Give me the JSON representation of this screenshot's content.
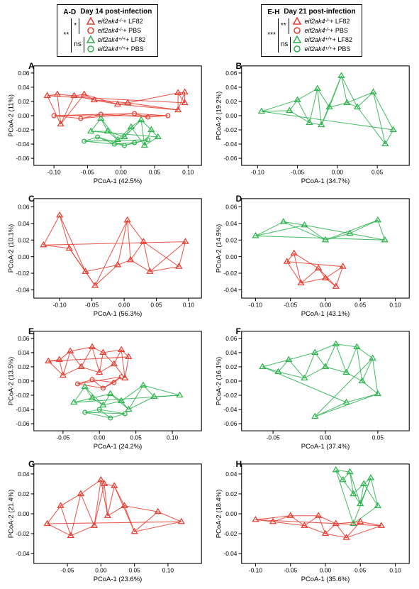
{
  "legends": [
    {
      "id": "legend-left",
      "panelRange": "A-D",
      "title": "Day 14 post-infection",
      "outerSig": "**",
      "innerSigTop": "*",
      "innerSigBottom": "ns",
      "items": [
        {
          "shape": "triangle",
          "color": "#e63b2e",
          "gene": "eif2ak4",
          "genotype": "-/-",
          "treat": " + LF82"
        },
        {
          "shape": "circle",
          "color": "#e63b2e",
          "gene": "eif2ak4",
          "genotype": "-/-",
          "treat": " + PBS"
        },
        {
          "shape": "triangle",
          "color": "#2bb24c",
          "gene": "eif2ak4",
          "genotype": "+/+",
          "treat": " + LF82"
        },
        {
          "shape": "circle",
          "color": "#2bb24c",
          "gene": "eif2ak4",
          "genotype": "+/+",
          "treat": " + PBS"
        }
      ]
    },
    {
      "id": "legend-right",
      "panelRange": "E-H",
      "title": "Day 21 post-infection",
      "outerSig": "***",
      "innerSigTop": "**",
      "innerSigBottom": "ns",
      "items": [
        {
          "shape": "triangle",
          "color": "#e63b2e",
          "gene": "eif2ak4",
          "genotype": "-/-",
          "treat": " + LF82"
        },
        {
          "shape": "circle",
          "color": "#e63b2e",
          "gene": "eif2ak4",
          "genotype": "-/-",
          "treat": " + PBS"
        },
        {
          "shape": "triangle",
          "color": "#2bb24c",
          "gene": "eif2ak4",
          "genotype": "+/+",
          "treat": " + LF82"
        },
        {
          "shape": "circle",
          "color": "#2bb24c",
          "gene": "eif2ak4",
          "genotype": "+/+",
          "treat": " + PBS"
        }
      ]
    }
  ],
  "chartStyle": {
    "background": "#ffffff",
    "axisColor": "#000000",
    "tickFont": 8,
    "labelFont": 9,
    "panelLabelFont": 12,
    "markerSize": 5,
    "lineWidth": 1.2
  },
  "panels": [
    {
      "label": "A",
      "xLabel": "PCoA-1 (42.5%)",
      "yLabel": "PCoA-2 (11%)",
      "xlim": [
        -0.13,
        0.12
      ],
      "ylim": [
        -0.07,
        0.07
      ],
      "xticks": [
        -0.1,
        -0.05,
        0.0,
        0.05,
        0.1
      ],
      "yticks": [
        -0.06,
        -0.04,
        -0.02,
        0.0,
        0.02,
        0.04,
        0.06
      ],
      "groups": [
        {
          "color": "#e63b2e",
          "marker": "triangle",
          "points": [
            [
              -0.11,
              0.028
            ],
            [
              -0.095,
              0.03
            ],
            [
              -0.09,
              -0.012
            ],
            [
              -0.07,
              0.028
            ],
            [
              -0.055,
              0.03
            ],
            [
              -0.04,
              0.022
            ],
            [
              -0.005,
              0.016
            ],
            [
              0.01,
              0.018
            ],
            [
              0.085,
              0.008
            ],
            [
              0.085,
              0.032
            ],
            [
              0.095,
              0.033
            ],
            [
              0.095,
              0.018
            ]
          ]
        },
        {
          "color": "#e63b2e",
          "marker": "circle",
          "points": [
            [
              -0.1,
              0.0
            ],
            [
              -0.06,
              -0.004
            ],
            [
              -0.03,
              0.002
            ],
            [
              0.02,
              0.003
            ],
            [
              0.04,
              -0.002
            ],
            [
              0.07,
              0.0
            ]
          ]
        },
        {
          "color": "#2bb24c",
          "marker": "triangle",
          "points": [
            [
              -0.045,
              -0.022
            ],
            [
              -0.03,
              -0.004
            ],
            [
              -0.02,
              -0.022
            ],
            [
              -0.005,
              -0.034
            ],
            [
              0.005,
              -0.03
            ],
            [
              0.015,
              -0.016
            ],
            [
              0.03,
              -0.006
            ],
            [
              0.035,
              -0.042
            ],
            [
              0.045,
              -0.02
            ],
            [
              0.055,
              -0.03
            ]
          ]
        },
        {
          "color": "#2bb24c",
          "marker": "circle",
          "points": [
            [
              -0.055,
              -0.036
            ],
            [
              -0.035,
              -0.03
            ],
            [
              -0.01,
              -0.04
            ],
            [
              0.005,
              -0.042
            ],
            [
              0.02,
              -0.038
            ],
            [
              0.04,
              -0.034
            ]
          ]
        }
      ]
    },
    {
      "label": "B",
      "xLabel": "PCoA-1 (34.7%)",
      "yLabel": "PCoA-2 (19.2%)",
      "xlim": [
        -0.12,
        0.09
      ],
      "ylim": [
        -0.07,
        0.07
      ],
      "xticks": [
        -0.1,
        -0.05,
        0.0,
        0.05
      ],
      "yticks": [
        -0.06,
        -0.04,
        -0.02,
        0.0,
        0.02,
        0.04,
        0.06
      ],
      "groups": [
        {
          "color": "#2bb24c",
          "marker": "triangle",
          "points": [
            [
              -0.095,
              0.006
            ],
            [
              -0.06,
              0.007
            ],
            [
              -0.05,
              0.022
            ],
            [
              -0.035,
              -0.01
            ],
            [
              -0.025,
              0.038
            ],
            [
              -0.02,
              -0.013
            ],
            [
              -0.01,
              0.012
            ],
            [
              0.005,
              0.056
            ],
            [
              0.012,
              0.018
            ],
            [
              0.025,
              0.012
            ],
            [
              0.045,
              0.033
            ],
            [
              0.06,
              -0.04
            ],
            [
              0.07,
              -0.02
            ]
          ]
        }
      ]
    },
    {
      "label": "C",
      "xLabel": "PCoA-1 (56.3%)",
      "yLabel": "PCoA-2 (10.1%)",
      "xlim": [
        -0.14,
        0.12
      ],
      "ylim": [
        -0.05,
        0.07
      ],
      "xticks": [
        -0.1,
        -0.05,
        0.0,
        0.05,
        0.1
      ],
      "yticks": [
        -0.04,
        -0.02,
        0.0,
        0.02,
        0.04,
        0.06
      ],
      "groups": [
        {
          "color": "#e63b2e",
          "marker": "triangle",
          "points": [
            [
              -0.125,
              0.014
            ],
            [
              -0.1,
              0.05
            ],
            [
              -0.085,
              0.01
            ],
            [
              -0.06,
              -0.018
            ],
            [
              -0.045,
              -0.035
            ],
            [
              -0.01,
              -0.01
            ],
            [
              0.005,
              0.044
            ],
            [
              0.01,
              -0.004
            ],
            [
              0.03,
              0.018
            ],
            [
              0.04,
              -0.018
            ],
            [
              0.085,
              -0.012
            ],
            [
              0.095,
              0.018
            ]
          ]
        }
      ]
    },
    {
      "label": "D",
      "xLabel": "PCoA-1 (43.1%)",
      "yLabel": "PCoA-2 (14.9%)",
      "xlim": [
        -0.12,
        0.12
      ],
      "ylim": [
        -0.05,
        0.07
      ],
      "xticks": [
        -0.1,
        -0.05,
        0.0,
        0.05,
        0.1
      ],
      "yticks": [
        -0.04,
        -0.02,
        0.0,
        0.02,
        0.04,
        0.06
      ],
      "groups": [
        {
          "color": "#2bb24c",
          "marker": "triangle",
          "points": [
            [
              -0.1,
              0.025
            ],
            [
              -0.06,
              0.042
            ],
            [
              -0.03,
              0.038
            ],
            [
              0.0,
              0.02
            ],
            [
              0.035,
              0.028
            ],
            [
              0.075,
              0.044
            ],
            [
              0.085,
              0.02
            ]
          ]
        },
        {
          "color": "#e63b2e",
          "marker": "triangle",
          "points": [
            [
              -0.055,
              -0.006
            ],
            [
              -0.045,
              0.004
            ],
            [
              -0.035,
              -0.032
            ],
            [
              -0.01,
              -0.014
            ],
            [
              0.0,
              -0.026
            ],
            [
              0.015,
              -0.036
            ],
            [
              0.025,
              -0.012
            ]
          ]
        }
      ]
    },
    {
      "label": "E",
      "xLabel": "PCoA-1 (24.2%)",
      "yLabel": "PCoA-2 (13.5%)",
      "xlim": [
        -0.09,
        0.14
      ],
      "ylim": [
        -0.07,
        0.07
      ],
      "xticks": [
        -0.05,
        0.0,
        0.05,
        0.1
      ],
      "yticks": [
        -0.06,
        -0.04,
        -0.02,
        0.0,
        0.02,
        0.04,
        0.06
      ],
      "groups": [
        {
          "color": "#e63b2e",
          "marker": "triangle",
          "points": [
            [
              -0.07,
              0.028
            ],
            [
              -0.055,
              0.03
            ],
            [
              -0.05,
              0.008
            ],
            [
              -0.04,
              0.042
            ],
            [
              -0.025,
              0.02
            ],
            [
              -0.01,
              0.048
            ],
            [
              0.0,
              0.012
            ],
            [
              0.005,
              0.04
            ],
            [
              0.02,
              0.024
            ],
            [
              0.03,
              0.044
            ],
            [
              0.035,
              0.004
            ],
            [
              0.04,
              0.034
            ]
          ]
        },
        {
          "color": "#e63b2e",
          "marker": "circle",
          "points": [
            [
              -0.03,
              -0.004
            ],
            [
              -0.01,
              0.002
            ],
            [
              0.005,
              -0.01
            ],
            [
              0.02,
              -0.002
            ],
            [
              0.03,
              0.006
            ]
          ]
        },
        {
          "color": "#2bb24c",
          "marker": "triangle",
          "points": [
            [
              -0.035,
              -0.03
            ],
            [
              -0.02,
              -0.008
            ],
            [
              -0.01,
              -0.024
            ],
            [
              0.005,
              -0.034
            ],
            [
              0.015,
              -0.018
            ],
            [
              0.03,
              -0.028
            ],
            [
              0.04,
              -0.04
            ],
            [
              0.06,
              -0.006
            ],
            [
              0.075,
              -0.022
            ],
            [
              0.11,
              -0.02
            ]
          ]
        },
        {
          "color": "#2bb24c",
          "marker": "circle",
          "points": [
            [
              -0.02,
              -0.044
            ],
            [
              0.0,
              -0.04
            ],
            [
              0.015,
              -0.052
            ],
            [
              0.035,
              -0.046
            ]
          ]
        }
      ]
    },
    {
      "label": "F",
      "xLabel": "PCoA-1 (37.4%)",
      "yLabel": "PCoA-2 (16.1%)",
      "xlim": [
        -0.08,
        0.08
      ],
      "ylim": [
        -0.07,
        0.07
      ],
      "xticks": [
        -0.05,
        0.0,
        0.05
      ],
      "yticks": [
        -0.06,
        -0.04,
        -0.02,
        0.0,
        0.02,
        0.04,
        0.06
      ],
      "groups": [
        {
          "color": "#2bb24c",
          "marker": "triangle",
          "points": [
            [
              -0.06,
              0.02
            ],
            [
              -0.045,
              0.013
            ],
            [
              -0.035,
              0.03
            ],
            [
              -0.02,
              0.004
            ],
            [
              -0.01,
              0.04
            ],
            [
              0.0,
              0.02
            ],
            [
              0.01,
              0.052
            ],
            [
              0.02,
              0.012
            ],
            [
              0.03,
              0.048
            ],
            [
              0.035,
              0.0
            ],
            [
              0.045,
              0.032
            ],
            [
              0.05,
              -0.018
            ],
            [
              -0.01,
              -0.05
            ],
            [
              0.02,
              -0.03
            ]
          ]
        }
      ]
    },
    {
      "label": "G",
      "xLabel": "PCoA-1 (23.6%)",
      "yLabel": "PCoA-2 (21.4%)",
      "xlim": [
        -0.1,
        0.15
      ],
      "ylim": [
        -0.05,
        0.05
      ],
      "xticks": [
        -0.05,
        0.0,
        0.05,
        0.1
      ],
      "yticks": [
        -0.04,
        -0.02,
        0.0,
        0.02,
        0.04
      ],
      "groups": [
        {
          "color": "#e63b2e",
          "marker": "triangle",
          "points": [
            [
              -0.08,
              -0.01
            ],
            [
              -0.06,
              0.008
            ],
            [
              -0.045,
              -0.022
            ],
            [
              -0.03,
              0.02
            ],
            [
              -0.01,
              -0.012
            ],
            [
              0.0,
              0.034
            ],
            [
              0.005,
              0.03
            ],
            [
              0.01,
              -0.002
            ],
            [
              0.02,
              0.028
            ],
            [
              0.035,
              0.008
            ],
            [
              0.05,
              -0.018
            ],
            [
              0.085,
              0.002
            ],
            [
              0.12,
              -0.008
            ]
          ]
        }
      ]
    },
    {
      "label": "H",
      "xLabel": "PCoA-1 (35.6%)",
      "yLabel": "PCoA-2 (18.4%)",
      "xlim": [
        -0.12,
        0.12
      ],
      "ylim": [
        -0.05,
        0.05
      ],
      "xticks": [
        -0.1,
        -0.05,
        0.0,
        0.05,
        0.1
      ],
      "yticks": [
        -0.04,
        -0.02,
        0.0,
        0.02,
        0.04
      ],
      "groups": [
        {
          "color": "#2bb24c",
          "marker": "triangle",
          "points": [
            [
              0.015,
              0.044
            ],
            [
              0.025,
              0.034
            ],
            [
              0.035,
              0.042
            ],
            [
              0.04,
              0.02
            ],
            [
              0.05,
              0.01
            ],
            [
              0.055,
              0.03
            ],
            [
              0.065,
              0.036
            ],
            [
              0.075,
              0.008
            ],
            [
              0.04,
              -0.01
            ]
          ]
        },
        {
          "color": "#e63b2e",
          "marker": "triangle",
          "points": [
            [
              -0.1,
              -0.006
            ],
            [
              -0.075,
              -0.008
            ],
            [
              -0.05,
              -0.002
            ],
            [
              -0.03,
              -0.012
            ],
            [
              -0.01,
              -0.002
            ],
            [
              0.0,
              -0.02
            ],
            [
              0.015,
              -0.01
            ],
            [
              0.03,
              -0.024
            ],
            [
              0.05,
              -0.008
            ],
            [
              0.08,
              -0.012
            ]
          ]
        }
      ]
    }
  ]
}
